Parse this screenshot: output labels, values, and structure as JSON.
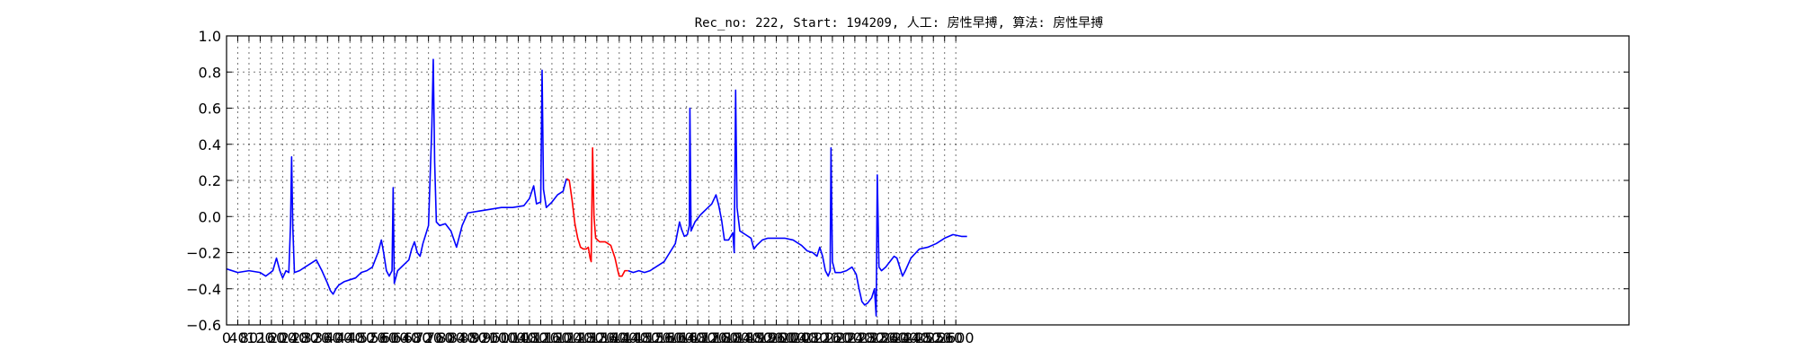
{
  "chart_data": {
    "type": "line",
    "title": "Rec_no: 222, Start: 194209, 人工: 房性早搏, 算法: 房性早搏",
    "xlabel": "",
    "ylabel": "",
    "xlim": [
      0,
      5000
    ],
    "ylim": [
      -0.6,
      1.0
    ],
    "grid": true,
    "yticks": [
      -0.6,
      -0.4,
      -0.2,
      0.0,
      0.2,
      0.4,
      0.6,
      0.8,
      1.0
    ],
    "ytick_labels": [
      "−0.6",
      "−0.4",
      "−0.2",
      "0.0",
      "0.2",
      "0.4",
      "0.6",
      "0.8",
      "1.0"
    ],
    "xticks": [
      0,
      40,
      80,
      120,
      160,
      200,
      240,
      280,
      320,
      360,
      400,
      440,
      480,
      520,
      560,
      600,
      640,
      680,
      720,
      760,
      800,
      840,
      880,
      920,
      960,
      1000,
      1040,
      1080,
      1120,
      1160,
      1200,
      1240,
      1280,
      1320,
      1360,
      1400,
      1440,
      1480,
      1520,
      1560,
      1600,
      1640,
      1680,
      1720,
      1760,
      1800,
      1840,
      1880,
      1920,
      1960,
      2000,
      2040,
      2080,
      2120,
      2160,
      2200,
      2240,
      2280,
      2320,
      2360,
      2400,
      2440,
      2480,
      2520,
      2560,
      2600
    ],
    "series": [
      {
        "color": "#0000ff",
        "segment": "before",
        "points": [
          [
            0,
            -0.29
          ],
          [
            40,
            -0.31
          ],
          [
            80,
            -0.3
          ],
          [
            120,
            -0.31
          ],
          [
            140,
            -0.33
          ],
          [
            165,
            -0.3
          ],
          [
            178,
            -0.23
          ],
          [
            190,
            -0.3
          ],
          [
            200,
            -0.34
          ],
          [
            212,
            -0.3
          ],
          [
            222,
            -0.31
          ],
          [
            228,
            -0.05
          ],
          [
            232,
            0.33
          ],
          [
            236,
            -0.05
          ],
          [
            242,
            -0.31
          ],
          [
            260,
            -0.3
          ],
          [
            280,
            -0.28
          ],
          [
            300,
            -0.26
          ],
          [
            320,
            -0.24
          ],
          [
            340,
            -0.3
          ],
          [
            360,
            -0.37
          ],
          [
            370,
            -0.41
          ],
          [
            380,
            -0.43
          ],
          [
            390,
            -0.4
          ],
          [
            400,
            -0.38
          ],
          [
            420,
            -0.36
          ],
          [
            440,
            -0.35
          ],
          [
            460,
            -0.34
          ],
          [
            480,
            -0.31
          ],
          [
            500,
            -0.3
          ],
          [
            520,
            -0.28
          ],
          [
            540,
            -0.2
          ],
          [
            552,
            -0.13
          ],
          [
            560,
            -0.2
          ],
          [
            570,
            -0.3
          ],
          [
            580,
            -0.33
          ],
          [
            590,
            -0.3
          ],
          [
            594,
            0.16
          ],
          [
            598,
            -0.37
          ],
          [
            610,
            -0.3
          ],
          [
            630,
            -0.27
          ],
          [
            650,
            -0.24
          ],
          [
            660,
            -0.18
          ],
          [
            670,
            -0.14
          ],
          [
            680,
            -0.2
          ],
          [
            690,
            -0.22
          ],
          [
            700,
            -0.15
          ],
          [
            710,
            -0.1
          ],
          [
            720,
            -0.05
          ],
          [
            732,
            0.5
          ],
          [
            737,
            0.87
          ],
          [
            742,
            0.3
          ],
          [
            748,
            -0.03
          ],
          [
            760,
            -0.05
          ],
          [
            780,
            -0.04
          ],
          [
            800,
            -0.08
          ],
          [
            820,
            -0.17
          ],
          [
            840,
            -0.05
          ],
          [
            860,
            0.02
          ],
          [
            900,
            0.03
          ],
          [
            940,
            0.04
          ],
          [
            980,
            0.05
          ],
          [
            1020,
            0.05
          ],
          [
            1060,
            0.06
          ],
          [
            1080,
            0.1
          ],
          [
            1095,
            0.17
          ],
          [
            1105,
            0.07
          ],
          [
            1120,
            0.08
          ],
          [
            1125,
            0.81
          ],
          [
            1130,
            0.15
          ],
          [
            1140,
            0.05
          ],
          [
            1160,
            0.08
          ],
          [
            1180,
            0.12
          ],
          [
            1200,
            0.14
          ],
          [
            1210,
            0.2
          ],
          [
            1213,
            0.21
          ]
        ]
      },
      {
        "color": "#ff0000",
        "segment": "marked",
        "points": [
          [
            1213,
            0.21
          ],
          [
            1222,
            0.2
          ],
          [
            1232,
            0.09
          ],
          [
            1242,
            -0.04
          ],
          [
            1252,
            -0.12
          ],
          [
            1262,
            -0.17
          ],
          [
            1272,
            -0.18
          ],
          [
            1282,
            -0.18
          ],
          [
            1290,
            -0.17
          ],
          [
            1296,
            -0.23
          ],
          [
            1300,
            -0.25
          ],
          [
            1305,
            0.38
          ],
          [
            1310,
            0.0
          ],
          [
            1316,
            -0.12
          ],
          [
            1330,
            -0.14
          ],
          [
            1350,
            -0.14
          ],
          [
            1370,
            -0.16
          ],
          [
            1385,
            -0.23
          ],
          [
            1395,
            -0.3
          ],
          [
            1400,
            -0.33
          ],
          [
            1410,
            -0.33
          ],
          [
            1420,
            -0.3
          ],
          [
            1432,
            -0.3
          ]
        ]
      },
      {
        "color": "#0000ff",
        "segment": "after",
        "points": [
          [
            1432,
            -0.3
          ],
          [
            1450,
            -0.31
          ],
          [
            1470,
            -0.3
          ],
          [
            1490,
            -0.31
          ],
          [
            1510,
            -0.3
          ],
          [
            1530,
            -0.28
          ],
          [
            1560,
            -0.25
          ],
          [
            1580,
            -0.2
          ],
          [
            1600,
            -0.15
          ],
          [
            1615,
            -0.03
          ],
          [
            1622,
            -0.07
          ],
          [
            1632,
            -0.11
          ],
          [
            1643,
            -0.1
          ],
          [
            1650,
            -0.05
          ],
          [
            1652,
            0.6
          ],
          [
            1656,
            -0.08
          ],
          [
            1670,
            -0.03
          ],
          [
            1690,
            0.01
          ],
          [
            1710,
            0.04
          ],
          [
            1730,
            0.07
          ],
          [
            1745,
            0.12
          ],
          [
            1755,
            0.06
          ],
          [
            1765,
            -0.02
          ],
          [
            1775,
            -0.13
          ],
          [
            1790,
            -0.13
          ],
          [
            1805,
            -0.09
          ],
          [
            1810,
            -0.2
          ],
          [
            1815,
            0.7
          ],
          [
            1820,
            0.05
          ],
          [
            1830,
            -0.08
          ],
          [
            1850,
            -0.1
          ],
          [
            1870,
            -0.12
          ],
          [
            1880,
            -0.18
          ],
          [
            1890,
            -0.16
          ],
          [
            1910,
            -0.13
          ],
          [
            1930,
            -0.12
          ],
          [
            1960,
            -0.12
          ],
          [
            1990,
            -0.12
          ],
          [
            2020,
            -0.13
          ],
          [
            2050,
            -0.16
          ],
          [
            2070,
            -0.19
          ],
          [
            2090,
            -0.2
          ],
          [
            2105,
            -0.22
          ],
          [
            2115,
            -0.17
          ],
          [
            2125,
            -0.22
          ],
          [
            2135,
            -0.3
          ],
          [
            2145,
            -0.33
          ],
          [
            2152,
            -0.3
          ],
          [
            2155,
            0.38
          ],
          [
            2160,
            -0.25
          ],
          [
            2170,
            -0.31
          ],
          [
            2190,
            -0.31
          ],
          [
            2210,
            -0.3
          ],
          [
            2230,
            -0.28
          ],
          [
            2245,
            -0.32
          ],
          [
            2255,
            -0.4
          ],
          [
            2265,
            -0.47
          ],
          [
            2275,
            -0.49
          ],
          [
            2285,
            -0.48
          ],
          [
            2300,
            -0.45
          ],
          [
            2310,
            -0.4
          ],
          [
            2316,
            -0.55
          ],
          [
            2320,
            0.23
          ],
          [
            2326,
            -0.28
          ],
          [
            2335,
            -0.3
          ],
          [
            2350,
            -0.28
          ],
          [
            2370,
            -0.24
          ],
          [
            2380,
            -0.22
          ],
          [
            2390,
            -0.23
          ],
          [
            2400,
            -0.28
          ],
          [
            2410,
            -0.33
          ],
          [
            2420,
            -0.3
          ],
          [
            2440,
            -0.23
          ],
          [
            2470,
            -0.18
          ],
          [
            2500,
            -0.17
          ],
          [
            2530,
            -0.15
          ],
          [
            2560,
            -0.12
          ],
          [
            2590,
            -0.1
          ],
          [
            2620,
            -0.11
          ],
          [
            2640,
            -0.11
          ]
        ]
      }
    ]
  }
}
